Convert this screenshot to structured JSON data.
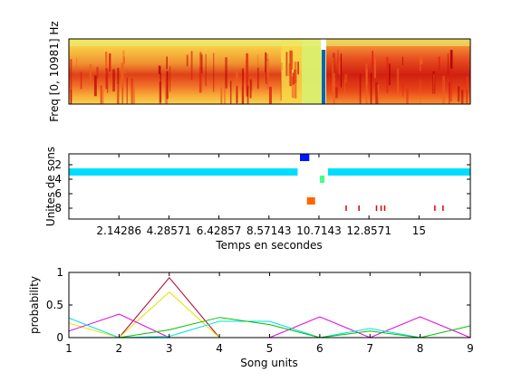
{
  "chart_data": [
    {
      "type": "heatmap",
      "ylabel": "Freq [0, 10981] Hz",
      "colormap": [
        "#b40000",
        "#e02010",
        "#f06020",
        "#f8a030",
        "#f8d040",
        "#e8f060",
        "#c0f080"
      ],
      "marker_colors": [
        "#1060c0",
        "#ffffff"
      ]
    },
    {
      "type": "scatter",
      "xlabel": "Temps en secondes",
      "ylabel": "Unites de sons",
      "xlim": [
        0,
        17.2
      ],
      "ylim": [
        9.5,
        0.5
      ],
      "xticks": [
        2.14286,
        4.28571,
        6.42857,
        8.57143,
        10.7143,
        12.8571,
        15
      ],
      "xtick_labels": [
        "2.14286",
        "4.28571",
        "6.42857",
        "8.57143",
        "10.7143",
        "12.8571",
        "15"
      ],
      "yticks": [
        2,
        4,
        6,
        8
      ],
      "segments": [
        {
          "unit": 1,
          "start": 9.9,
          "end": 10.3,
          "color": "#0018ff"
        },
        {
          "unit": 3,
          "start": 0.0,
          "end": 9.8,
          "color": "#00ddff"
        },
        {
          "unit": 3,
          "start": 11.1,
          "end": 17.2,
          "color": "#00ddff"
        },
        {
          "unit": 4,
          "start": 10.75,
          "end": 10.95,
          "color": "#44ff88"
        },
        {
          "unit": 7,
          "start": 10.2,
          "end": 10.55,
          "color": "#ff6600"
        },
        {
          "unit": 8,
          "start": 11.85,
          "end": 11.9,
          "color": "#dd0000"
        },
        {
          "unit": 8,
          "start": 12.4,
          "end": 12.45,
          "color": "#dd0000"
        },
        {
          "unit": 8,
          "start": 13.15,
          "end": 13.2,
          "color": "#dd0000"
        },
        {
          "unit": 8,
          "start": 13.35,
          "end": 13.4,
          "color": "#dd0000"
        },
        {
          "unit": 8,
          "start": 13.5,
          "end": 13.55,
          "color": "#dd0000"
        },
        {
          "unit": 8,
          "start": 15.65,
          "end": 15.7,
          "color": "#dd0000"
        },
        {
          "unit": 8,
          "start": 16.0,
          "end": 16.05,
          "color": "#dd0000"
        }
      ]
    },
    {
      "type": "line",
      "xlabel": "Song units",
      "ylabel": "probability",
      "xlim": [
        1,
        9
      ],
      "ylim": [
        0,
        1
      ],
      "x": [
        1,
        2,
        3,
        4,
        5,
        6,
        7,
        8,
        9
      ],
      "xtick_labels": [
        "1",
        "2",
        "3",
        "4",
        "5",
        "6",
        "7",
        "8",
        "9"
      ],
      "yticks": [
        0,
        0.5,
        1
      ],
      "ytick_labels": [
        "0",
        "0.5",
        "1"
      ],
      "series": [
        {
          "values": [
            0.0,
            0.0,
            0.92,
            0.0,
            0.0,
            0.0,
            0.0,
            0.0,
            0.0
          ],
          "color": "#b00030"
        },
        {
          "values": [
            0.22,
            0.0,
            0.7,
            0.0,
            0.0,
            0.0,
            0.0,
            0.0,
            0.0
          ],
          "color": "#e8e000"
        },
        {
          "values": [
            0.1,
            0.36,
            0.0,
            0.0,
            0.0,
            0.32,
            0.0,
            0.32,
            0.0
          ],
          "color": "#e000e0"
        },
        {
          "values": [
            0.3,
            0.0,
            0.02,
            0.25,
            0.25,
            0.0,
            0.14,
            0.0,
            0.0
          ],
          "color": "#00e0e0"
        },
        {
          "values": [
            0.0,
            0.0,
            0.12,
            0.31,
            0.2,
            0.0,
            0.1,
            0.0,
            0.18
          ],
          "color": "#00c000"
        }
      ]
    }
  ]
}
